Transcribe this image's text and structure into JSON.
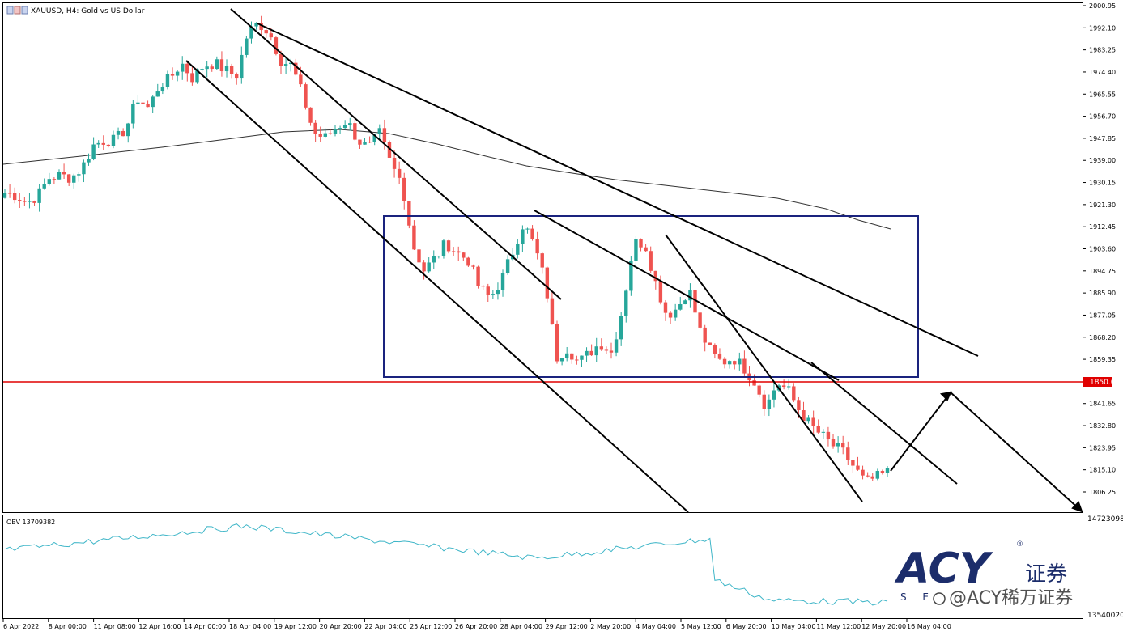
{
  "header": {
    "title": "XAUUSD, H4:  Gold vs US Dollar"
  },
  "indicator": {
    "label": "OBV 13709382"
  },
  "watermark": {
    "logo_text": "ACY",
    "logo_cn": "证券",
    "logo_sub": "S E",
    "handle": "@ACY稀万证券"
  },
  "colors": {
    "bull": "#26a69a",
    "bear": "#ef5350",
    "support_line": "#e00000",
    "range_box": "#1a237e",
    "obv_line": "#3fb6c8",
    "ma_line": "#333333",
    "logo": "#1c2d6b"
  },
  "chart_data": [
    {
      "type": "candlestick",
      "symbol": "XAUUSD",
      "timeframe": "H4",
      "title": "XAUUSD, H4:  Gold vs US Dollar",
      "y_ticks": [
        "2000.95",
        "1992.10",
        "1983.25",
        "1974.40",
        "1965.55",
        "1956.70",
        "1947.85",
        "1939.00",
        "1930.15",
        "1921.30",
        "1912.45",
        "1903.60",
        "1894.75",
        "1885.90",
        "1877.05",
        "1868.20",
        "1859.35",
        "1850.00",
        "1841.65",
        "1832.80",
        "1823.95",
        "1815.10",
        "1806.25"
      ],
      "ylim": [
        1798.6,
        2002.0
      ],
      "x_ticks": [
        "6 Apr 2022",
        "8 Apr 00:00",
        "11 Apr 08:00",
        "12 Apr 16:00",
        "14 Apr 00:00",
        "18 Apr 04:00",
        "19 Apr 12:00",
        "20 Apr 20:00",
        "22 Apr 04:00",
        "25 Apr 12:00",
        "26 Apr 20:00",
        "28 Apr 04:00",
        "29 Apr 12:00",
        "2 May 20:00",
        "4 May 04:00",
        "5 May 12:00",
        "6 May 20:00",
        "10 May 04:00",
        "11 May 12:00",
        "12 May 20:00",
        "16 May 04:00"
      ],
      "price_highlight": "1850.00",
      "close_path": [
        1926,
        1925,
        1922,
        1925,
        1932,
        1933,
        1932,
        1936,
        1945,
        1947,
        1947,
        1952,
        1964,
        1960,
        1969,
        1972,
        1978,
        1972,
        1977,
        1978,
        1975,
        1973,
        1990,
        1994,
        1990,
        1979,
        1977,
        1965,
        1950,
        1948,
        1952,
        1955,
        1947,
        1944,
        1950,
        1937,
        1930,
        1905,
        1895,
        1900,
        1906,
        1902,
        1899,
        1888,
        1884,
        1891,
        1902,
        1914,
        1905,
        1890,
        1860,
        1864,
        1858,
        1862,
        1866,
        1862,
        1880,
        1906,
        1906,
        1890,
        1877,
        1880,
        1888,
        1871,
        1862,
        1858,
        1860,
        1856,
        1850,
        1840,
        1850,
        1847,
        1839,
        1833,
        1829,
        1825,
        1822,
        1816,
        1810,
        1812,
        1814
      ],
      "indicator_annotation": "12 May 20:00"
    },
    {
      "type": "line",
      "title": "OBV 13709382",
      "y_ticks": [
        "14723098",
        "13540020"
      ],
      "ylim": [
        13540020,
        14723098
      ]
    }
  ],
  "annotations": {
    "range_box": {
      "price_top": 1917,
      "price_bottom": 1851,
      "from": "25 Apr 12:00",
      "to": "16 May 04:00"
    },
    "support_price": 1850.0
  }
}
